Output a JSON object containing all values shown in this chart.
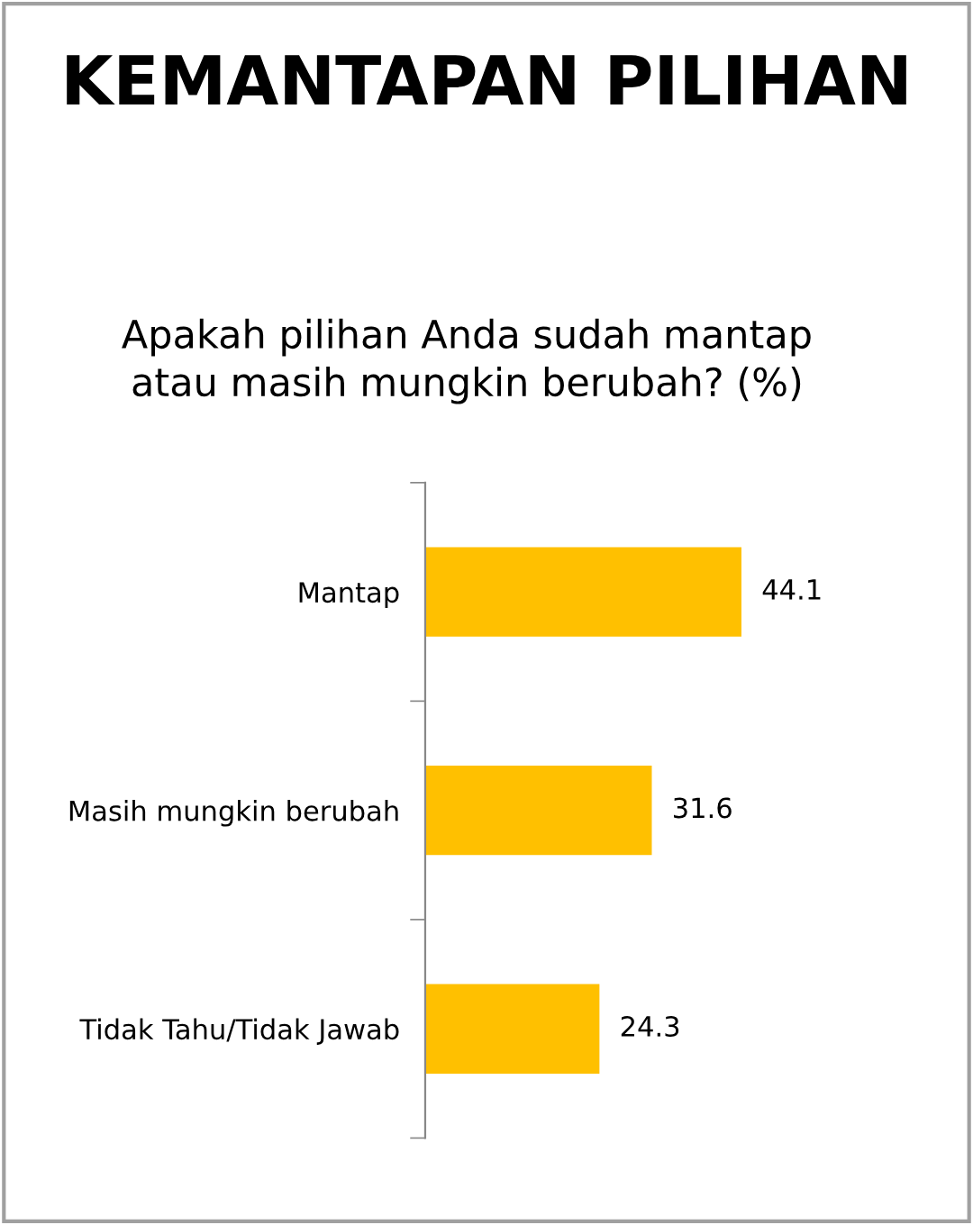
{
  "chart_data": {
    "type": "bar",
    "orientation": "horizontal",
    "title": "KEMANTAPAN PILIHAN",
    "subtitle": "Apakah pilihan Anda sudah mantap\natau masih mungkin berubah? (%)",
    "categories": [
      "Mantap",
      "Masih mungkin berubah",
      "Tidak Tahu/Tidak Jawab"
    ],
    "values": [
      44.1,
      31.6,
      24.3
    ],
    "color": "#ffc000",
    "data_labels": true,
    "grid": false,
    "legend": false,
    "tick_labels": "y"
  }
}
